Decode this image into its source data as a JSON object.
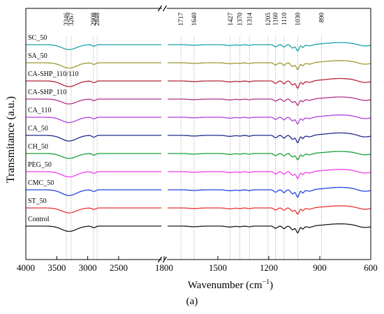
{
  "chart_data": {
    "type": "line",
    "title": "",
    "xlabel": "Wavenumber (cm",
    "xlabel_sup": "−1",
    "xlabel_close": ")",
    "ylabel": "Transmitance (a.u.)",
    "x_axis_reversed": true,
    "x_axis_break": true,
    "xlim_left_segment": [
      4000,
      1800
    ],
    "xlim_right_segment": [
      1800,
      600
    ],
    "xticks": [
      "4000",
      "3500",
      "3000",
      "2500",
      "1800",
      "1500",
      "1200",
      "900",
      "600"
    ],
    "reference_lines": [
      {
        "x": 3346,
        "label": "3346"
      },
      {
        "x": 3267,
        "label": "3267"
      },
      {
        "x": 2908,
        "label": "2908"
      },
      {
        "x": 2848,
        "label": "2848"
      },
      {
        "x": 1717,
        "label": "1717"
      },
      {
        "x": 1640,
        "label": "1640"
      },
      {
        "x": 1427,
        "label": "1427"
      },
      {
        "x": 1370,
        "label": "1370"
      },
      {
        "x": 1314,
        "label": "1314"
      },
      {
        "x": 1205,
        "label": "1205"
      },
      {
        "x": 1160,
        "label": "1160"
      },
      {
        "x": 1110,
        "label": "1110"
      },
      {
        "x": 1030,
        "label": "1030"
      },
      {
        "x": 890,
        "label": "890"
      }
    ],
    "grid": false,
    "legend": "inline labels above each curve",
    "series": [
      {
        "name": "SC_50",
        "color": "#17a3a6"
      },
      {
        "name": "SA_50",
        "color": "#9e9a30"
      },
      {
        "name": "CA-SHP_110/110",
        "color": "#b5243a"
      },
      {
        "name": "CA-SHP_110",
        "color": "#b0308a"
      },
      {
        "name": "CA_110",
        "color": "#b03fdc"
      },
      {
        "name": "CA_50",
        "color": "#1f2a8c"
      },
      {
        "name": "CH_50",
        "color": "#18a03a"
      },
      {
        "name": "PEG_50",
        "color": "#f23ce6"
      },
      {
        "name": "CMC_50",
        "color": "#2342e0"
      },
      {
        "name": "ST_50",
        "color": "#e63434"
      },
      {
        "name": "Control",
        "color": "#1a1a1a"
      }
    ]
  },
  "caption": "(a)"
}
